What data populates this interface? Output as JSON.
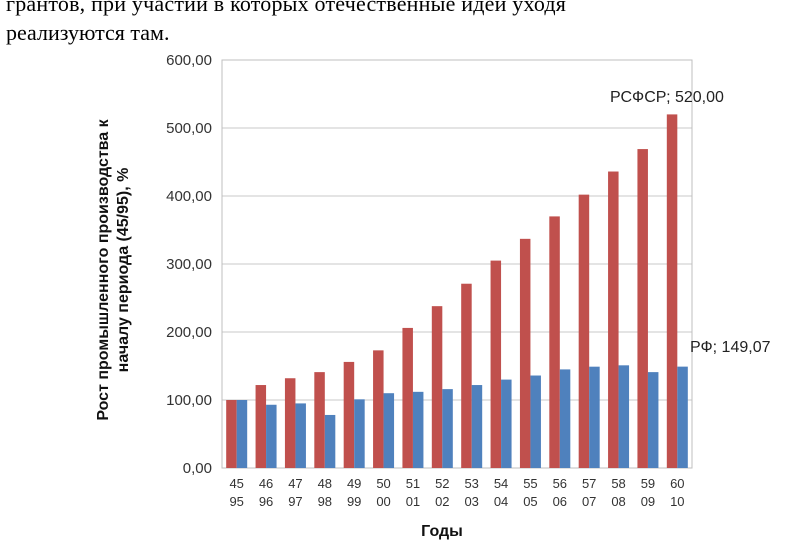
{
  "document": {
    "line1": "грантов, при участии в которых отечественные идеи уходя",
    "line2": "реализуются там."
  },
  "chart_data": {
    "type": "bar",
    "title": "",
    "xlabel": "Годы",
    "ylabel_line1": "Рост промышленного производства к",
    "ylabel_line2": "началу периода (45/95), %",
    "ylim": [
      0,
      600
    ],
    "yticks": [
      "0,00",
      "100,00",
      "200,00",
      "300,00",
      "400,00",
      "500,00",
      "600,00"
    ],
    "grid": true,
    "categories": [
      [
        "45",
        "95"
      ],
      [
        "46",
        "96"
      ],
      [
        "47",
        "97"
      ],
      [
        "48",
        "98"
      ],
      [
        "49",
        "99"
      ],
      [
        "50",
        "00"
      ],
      [
        "51",
        "01"
      ],
      [
        "52",
        "02"
      ],
      [
        "53",
        "03"
      ],
      [
        "54",
        "04"
      ],
      [
        "55",
        "05"
      ],
      [
        "56",
        "06"
      ],
      [
        "57",
        "07"
      ],
      [
        "58",
        "08"
      ],
      [
        "59",
        "09"
      ],
      [
        "60",
        "10"
      ]
    ],
    "series": [
      {
        "name": "РСФСР",
        "color": "#c0504d",
        "values": [
          100,
          122,
          132,
          141,
          156,
          173,
          206,
          238,
          271,
          305,
          337,
          370,
          402,
          436,
          469,
          520
        ]
      },
      {
        "name": "РФ",
        "color": "#4f81bd",
        "values": [
          100,
          93,
          95,
          78,
          101,
          110,
          112,
          116,
          122,
          130,
          136,
          145,
          149,
          151,
          141,
          149.07
        ]
      }
    ],
    "annotations": [
      {
        "text": "РСФСР; 520,00"
      },
      {
        "text": "РФ; 149,07"
      }
    ]
  }
}
